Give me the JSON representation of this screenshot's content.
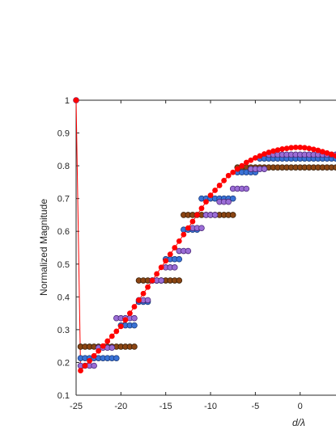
{
  "chart_data": {
    "type": "scatter",
    "title": "",
    "xlabel": "d/λ",
    "ylabel": "Normalized Magnitude",
    "xlim": [
      -25,
      4
    ],
    "ylim": [
      0.1,
      1
    ],
    "grid": false,
    "x_ticks": [
      -25,
      -20,
      -15,
      -10,
      -5,
      0
    ],
    "y_ticks": [
      0.1,
      0.2,
      0.3,
      0.4,
      0.5,
      0.6,
      0.7,
      0.8,
      0.9,
      1
    ],
    "x_tick_labels": [
      "-25",
      "-20",
      "-15",
      "-10",
      "-5",
      "0"
    ],
    "y_tick_labels": [
      "0.1",
      "0.2",
      "0.3",
      "0.4",
      "0.5",
      "0.6",
      "0.7",
      "0.8",
      "0.9",
      "1"
    ],
    "series": [
      {
        "color": "#ff0000",
        "edge": "#ff0000",
        "marker_radius": 3,
        "line": true,
        "x": [
          -25,
          -24.5,
          -24,
          -23.5,
          -23,
          -22.5,
          -22,
          -21.5,
          -21,
          -20.5,
          -20,
          -19.5,
          -19,
          -18.5,
          -18,
          -17.5,
          -17,
          -16.5,
          -16,
          -15.5,
          -15,
          -14.5,
          -14,
          -13.5,
          -13,
          -12.5,
          -12,
          -11.5,
          -11,
          -10.5,
          -10,
          -9.5,
          -9,
          -8.5,
          -8,
          -7.5,
          -7,
          -6.5,
          -6,
          -5.5,
          -5,
          -4.5,
          -4,
          -3.5,
          -3,
          -2.5,
          -2,
          -1.5,
          -1,
          -0.5,
          0,
          0.5,
          1,
          1.5,
          2,
          2.5,
          3,
          3.5,
          4
        ],
        "y": [
          1.0,
          0.175,
          0.19,
          0.205,
          0.22,
          0.235,
          0.25,
          0.265,
          0.28,
          0.295,
          0.31,
          0.33,
          0.35,
          0.37,
          0.39,
          0.41,
          0.43,
          0.45,
          0.47,
          0.49,
          0.51,
          0.53,
          0.55,
          0.57,
          0.59,
          0.61,
          0.63,
          0.65,
          0.67,
          0.69,
          0.71,
          0.725,
          0.74,
          0.755,
          0.77,
          0.78,
          0.79,
          0.8,
          0.81,
          0.817,
          0.824,
          0.83,
          0.836,
          0.841,
          0.845,
          0.848,
          0.851,
          0.853,
          0.855,
          0.856,
          0.856,
          0.855,
          0.853,
          0.85,
          0.847,
          0.843,
          0.839,
          0.835,
          0.83
        ]
      },
      {
        "color": "#8b4513",
        "edge": "#3a1f08",
        "marker_radius": 3.4,
        "line": false,
        "x": [
          -24.5,
          -24,
          -23.5,
          -23,
          -22.5,
          -22,
          -21.5,
          -21,
          -20.5,
          -20,
          -19.5,
          -19,
          -18.5,
          -18,
          -17.5,
          -17,
          -16.5,
          -16,
          -15.5,
          -15,
          -14.5,
          -14,
          -13.5,
          -13,
          -12.5,
          -12,
          -11.5,
          -11,
          -10.5,
          -10,
          -9.5,
          -9,
          -8.5,
          -8,
          -7.5,
          -7,
          -6.5,
          -6,
          -5.5,
          -5,
          -4.5,
          -4,
          -3.5,
          -3,
          -2.5,
          -2,
          -1.5,
          -1,
          -0.5,
          0,
          0.5,
          1,
          1.5,
          2,
          2.5,
          3,
          3.5,
          4
        ],
        "y": [
          0.248,
          0.248,
          0.248,
          0.248,
          0.248,
          0.248,
          0.248,
          0.248,
          0.248,
          0.248,
          0.248,
          0.248,
          0.248,
          0.45,
          0.45,
          0.45,
          0.45,
          0.45,
          0.45,
          0.45,
          0.45,
          0.45,
          0.45,
          0.65,
          0.65,
          0.65,
          0.65,
          0.65,
          0.65,
          0.65,
          0.65,
          0.65,
          0.65,
          0.65,
          0.65,
          0.795,
          0.795,
          0.795,
          0.795,
          0.795,
          0.795,
          0.795,
          0.795,
          0.795,
          0.795,
          0.795,
          0.795,
          0.795,
          0.795,
          0.795,
          0.795,
          0.795,
          0.795,
          0.795,
          0.795,
          0.795,
          0.795,
          0.795
        ]
      },
      {
        "color": "#3a72d6",
        "edge": "#1a3a7a",
        "marker_radius": 3.4,
        "line": false,
        "x": [
          -24.5,
          -24,
          -23.5,
          -23,
          -22.5,
          -22,
          -21.5,
          -21,
          -20.5,
          -20,
          -19.5,
          -19,
          -18.5,
          -18,
          -17.5,
          -17,
          -16.5,
          -16,
          -15.5,
          -15,
          -14.5,
          -14,
          -13.5,
          -13,
          -12.5,
          -12,
          -11.5,
          -11,
          -10.5,
          -10,
          -9.5,
          -9,
          -8.5,
          -8,
          -7.5,
          -7,
          -6.5,
          -6,
          -5.5,
          -5,
          -4.5,
          -4,
          -3.5,
          -3,
          -2.5,
          -2,
          -1.5,
          -1,
          -0.5,
          0,
          0.5,
          1,
          1.5,
          2,
          2.5,
          3,
          3.5,
          4
        ],
        "y": [
          0.213,
          0.213,
          0.213,
          0.213,
          0.213,
          0.213,
          0.213,
          0.213,
          0.213,
          0.313,
          0.313,
          0.313,
          0.313,
          0.385,
          0.385,
          0.385,
          0.45,
          0.45,
          0.45,
          0.515,
          0.515,
          0.515,
          0.515,
          0.605,
          0.605,
          0.605,
          0.605,
          0.7,
          0.7,
          0.7,
          0.7,
          0.7,
          0.7,
          0.7,
          0.7,
          0.78,
          0.78,
          0.78,
          0.78,
          0.78,
          0.822,
          0.822,
          0.822,
          0.822,
          0.822,
          0.822,
          0.822,
          0.822,
          0.822,
          0.822,
          0.822,
          0.822,
          0.822,
          0.822,
          0.822,
          0.822,
          0.822,
          0.822
        ]
      },
      {
        "color": "#9b6dd6",
        "edge": "#4b2a7a",
        "marker_radius": 3.4,
        "line": false,
        "x": [
          -25,
          -24.5,
          -24,
          -23.5,
          -23,
          -22.5,
          -22,
          -21.5,
          -21,
          -20.5,
          -20,
          -19.5,
          -19,
          -18.5,
          -18,
          -17.5,
          -17,
          -16.5,
          -16,
          -15.5,
          -15,
          -14.5,
          -14,
          -13.5,
          -13,
          -12.5,
          -12,
          -11.5,
          -11,
          -10.5,
          -10,
          -9.5,
          -9,
          -8.5,
          -8,
          -7.5,
          -7,
          -6.5,
          -6,
          -5.5,
          -5,
          -4.5,
          -4,
          -3.5,
          -3,
          -2.5,
          -2,
          -1.5,
          -1,
          -0.5,
          0,
          0.5,
          1,
          1.5,
          2,
          2.5,
          3,
          3.5,
          4
        ],
        "y": [
          1.0,
          0.19,
          0.19,
          0.19,
          0.19,
          0.245,
          0.245,
          0.245,
          0.245,
          0.335,
          0.335,
          0.335,
          0.335,
          0.335,
          0.39,
          0.39,
          0.39,
          0.45,
          0.45,
          0.45,
          0.49,
          0.49,
          0.49,
          0.54,
          0.54,
          0.54,
          0.61,
          0.61,
          0.61,
          0.65,
          0.65,
          0.65,
          0.69,
          0.69,
          0.69,
          0.73,
          0.73,
          0.73,
          0.73,
          0.79,
          0.79,
          0.79,
          0.79,
          0.834,
          0.834,
          0.834,
          0.834,
          0.834,
          0.834,
          0.834,
          0.834,
          0.834,
          0.834,
          0.834,
          0.834,
          0.834,
          0.834,
          0.834,
          0.834
        ]
      }
    ]
  }
}
